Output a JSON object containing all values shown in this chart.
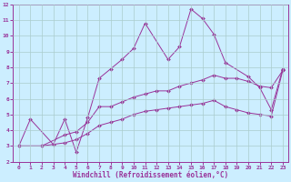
{
  "xlabel": "Windchill (Refroidissement éolien,°C)",
  "xlim": [
    -0.5,
    23.5
  ],
  "ylim": [
    2,
    12
  ],
  "xticks": [
    0,
    1,
    2,
    3,
    4,
    5,
    6,
    7,
    8,
    9,
    10,
    11,
    12,
    13,
    14,
    15,
    16,
    17,
    18,
    19,
    20,
    21,
    22,
    23
  ],
  "yticks": [
    2,
    3,
    4,
    5,
    6,
    7,
    8,
    9,
    10,
    11,
    12
  ],
  "bg_color": "#cceeff",
  "grid_color": "#aacccc",
  "line_color": "#993399",
  "series1_x": [
    0,
    1,
    3,
    4,
    5,
    6,
    7,
    8,
    9,
    10,
    11,
    13,
    14,
    15,
    16,
    17,
    18,
    20,
    21,
    22,
    23
  ],
  "series1_y": [
    3.0,
    4.7,
    3.1,
    4.7,
    2.6,
    4.8,
    7.3,
    7.9,
    8.5,
    9.2,
    10.8,
    8.5,
    9.3,
    11.7,
    11.1,
    10.1,
    8.3,
    7.4,
    6.7,
    5.3,
    7.9
  ],
  "series2_x": [
    0,
    2,
    4,
    5,
    6,
    7,
    8,
    9,
    10,
    11,
    12,
    13,
    14,
    15,
    16,
    17,
    18,
    19,
    20,
    21,
    22,
    23
  ],
  "series2_y": [
    3.0,
    3.0,
    3.7,
    3.9,
    4.5,
    5.5,
    5.5,
    5.8,
    6.1,
    6.3,
    6.5,
    6.5,
    6.8,
    7.0,
    7.2,
    7.5,
    7.3,
    7.3,
    7.1,
    6.8,
    6.7,
    7.8
  ],
  "series3_x": [
    0,
    2,
    4,
    5,
    6,
    7,
    8,
    9,
    10,
    11,
    12,
    13,
    14,
    15,
    16,
    17,
    18,
    19,
    20,
    21,
    22,
    23
  ],
  "series3_y": [
    3.0,
    3.0,
    3.2,
    3.4,
    3.8,
    4.3,
    4.5,
    4.7,
    5.0,
    5.2,
    5.3,
    5.4,
    5.5,
    5.6,
    5.7,
    5.9,
    5.5,
    5.3,
    5.1,
    5.0,
    4.9,
    7.8
  ],
  "marker": "D",
  "markersize": 2.0,
  "linewidth": 0.7,
  "tick_fontsize": 4.5,
  "xlabel_fontsize": 5.5
}
